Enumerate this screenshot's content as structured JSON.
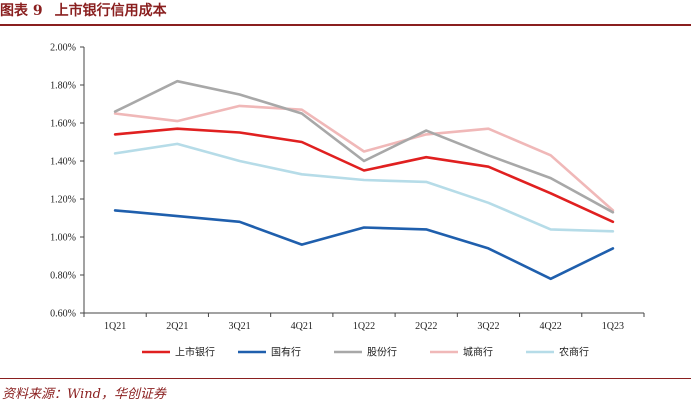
{
  "figure": {
    "label": "图表 9",
    "title": "上市银行信用成本",
    "source": "资料来源：Wind，华创证券"
  },
  "chart_data": {
    "type": "line",
    "categories": [
      "1Q21",
      "2Q21",
      "3Q21",
      "4Q21",
      "1Q22",
      "2Q22",
      "3Q22",
      "4Q22",
      "1Q23"
    ],
    "y_ticks": [
      "0.60%",
      "0.80%",
      "1.00%",
      "1.20%",
      "1.40%",
      "1.60%",
      "1.80%",
      "2.00%"
    ],
    "ylim": [
      0.6,
      2.0
    ],
    "y_unit": "%",
    "grid": false,
    "legend_position": "bottom",
    "series": [
      {
        "name": "上市银行",
        "color": "#e02020",
        "values": [
          1.54,
          1.57,
          1.55,
          1.5,
          1.35,
          1.42,
          1.37,
          1.23,
          1.08
        ]
      },
      {
        "name": "国有行",
        "color": "#1f5fad",
        "values": [
          1.14,
          1.11,
          1.08,
          0.96,
          1.05,
          1.04,
          0.94,
          0.78,
          0.94
        ]
      },
      {
        "name": "股份行",
        "color": "#a8a8a8",
        "values": [
          1.66,
          1.82,
          1.75,
          1.65,
          1.4,
          1.56,
          1.43,
          1.31,
          1.13
        ]
      },
      {
        "name": "城商行",
        "color": "#f0b8b8",
        "values": [
          1.65,
          1.61,
          1.69,
          1.67,
          1.45,
          1.54,
          1.57,
          1.43,
          1.14
        ]
      },
      {
        "name": "农商行",
        "color": "#b6dce8",
        "values": [
          1.44,
          1.49,
          1.4,
          1.33,
          1.3,
          1.29,
          1.18,
          1.04,
          1.03
        ]
      }
    ]
  }
}
